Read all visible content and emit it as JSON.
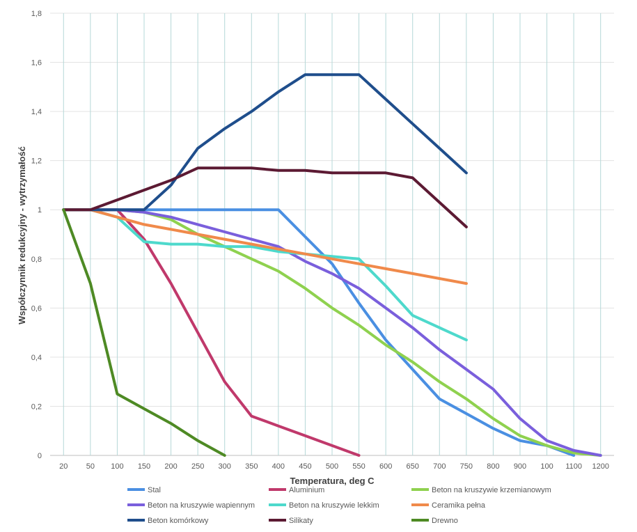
{
  "chart_data": {
    "type": "line",
    "title": "",
    "xlabel": "Temperatura, deg C",
    "ylabel": "Współczynnik redukcyjny - wytrzymałość",
    "x": [
      "20",
      "50",
      "100",
      "150",
      "200",
      "250",
      "300",
      "350",
      "400",
      "450",
      "500",
      "550",
      "600",
      "650",
      "700",
      "750",
      "800",
      "900",
      "100",
      "1100",
      "1200"
    ],
    "y_ticks": [
      "0",
      "0,2",
      "0,4",
      "0,6",
      "0,8",
      "1",
      "1,2",
      "1,4",
      "1,6",
      "1,8"
    ],
    "ylim": [
      0,
      1.8
    ],
    "grid": "vertical lines at categories, horizontal lines at y ticks",
    "legend_position": "bottom",
    "series": [
      {
        "name": "Stal",
        "color": "#4a8fe2",
        "values": [
          1,
          1,
          1,
          1,
          1,
          1,
          1,
          1,
          1,
          0.89,
          0.78,
          0.62,
          0.47,
          0.35,
          0.23,
          0.17,
          0.11,
          0.06,
          0.04,
          0,
          null
        ]
      },
      {
        "name": "Aluminium",
        "color": "#c0396b",
        "values": [
          1,
          1,
          1,
          0.88,
          0.7,
          0.5,
          0.3,
          0.16,
          0.12,
          0.08,
          0.04,
          0,
          null,
          null,
          null,
          null,
          null,
          null,
          null,
          null,
          null
        ]
      },
      {
        "name": "Beton na kruszywie krzemianowym",
        "color": "#8fd14f",
        "values": [
          1,
          1,
          1,
          0.99,
          0.96,
          0.9,
          0.85,
          0.8,
          0.75,
          0.68,
          0.6,
          0.53,
          0.45,
          0.38,
          0.3,
          0.23,
          0.15,
          0.08,
          0.04,
          0.01,
          0
        ]
      },
      {
        "name": "Beton na kruszywie wapiennym",
        "color": "#7a5fdc",
        "values": [
          1,
          1,
          1,
          0.99,
          0.97,
          0.94,
          0.91,
          0.88,
          0.85,
          0.79,
          0.74,
          0.68,
          0.6,
          0.52,
          0.43,
          0.35,
          0.27,
          0.15,
          0.06,
          0.02,
          0
        ]
      },
      {
        "name": "Beton na kruszywie lekkim",
        "color": "#4ed9cc",
        "values": [
          1,
          1,
          0.97,
          0.87,
          0.86,
          0.86,
          0.85,
          0.85,
          0.83,
          0.82,
          0.81,
          0.8,
          0.69,
          0.57,
          0.52,
          0.47,
          null,
          null,
          null,
          null,
          null
        ]
      },
      {
        "name": "Ceramika pełna",
        "color": "#f08a4b",
        "values": [
          1,
          1,
          0.97,
          0.94,
          0.92,
          0.9,
          0.88,
          0.86,
          0.84,
          0.82,
          0.8,
          0.78,
          0.76,
          0.74,
          0.72,
          0.7,
          null,
          null,
          null,
          null,
          null
        ]
      },
      {
        "name": "Beton komórkowy",
        "color": "#1f4e8c",
        "values": [
          1,
          1,
          1,
          1,
          1.1,
          1.25,
          1.33,
          1.4,
          1.48,
          1.55,
          1.55,
          1.55,
          1.45,
          1.35,
          1.25,
          1.15,
          null,
          null,
          null,
          null,
          null
        ]
      },
      {
        "name": "Silikaty",
        "color": "#5c1a33",
        "values": [
          1,
          1,
          1.04,
          1.08,
          1.12,
          1.17,
          1.17,
          1.17,
          1.16,
          1.16,
          1.15,
          1.15,
          1.15,
          1.13,
          1.03,
          0.93,
          null,
          null,
          null,
          null,
          null
        ]
      },
      {
        "name": "Drewno",
        "color": "#4e8a24",
        "values": [
          1,
          0.7,
          0.25,
          0.19,
          0.13,
          0.06,
          0,
          null,
          null,
          null,
          null,
          null,
          null,
          null,
          null,
          null,
          null,
          null,
          null,
          null,
          null
        ]
      }
    ]
  }
}
